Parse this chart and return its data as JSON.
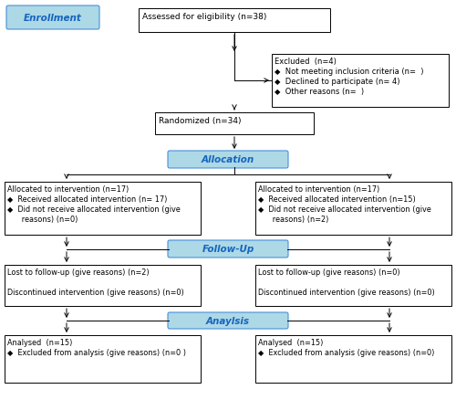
{
  "bg_color": "#ffffff",
  "blue_fill": "#ADD8E6",
  "blue_edge": "#4A90D9",
  "blue_text": "#1565C0",
  "box_edge": "#000000",
  "enrollment_label": "Enrollment",
  "allocation_label": "Allocation",
  "followup_label": "Follow-Up",
  "analysis_label": "Anaylsis",
  "assessed_text": "Assessed for eligibility (n=38)",
  "excluded_text": "Excluded  (n=4)\n◆  Not meeting inclusion criteria (n=  )\n◆  Declined to participate (n= 4)\n◆  Other reasons (n=  )",
  "randomized_text": "Randomized (n=34)",
  "alloc_left_text": "Allocated to intervention (n=17)\n◆  Received allocated intervention (n= 17)\n◆  Did not receive allocated intervention (give\n      reasons) (n=0)",
  "alloc_right_text": "Allocated to intervention (n=17)\n◆  Received allocated intervention (n=15)\n◆  Did not receive allocated intervention (give\n      reasons) (n=2)",
  "followup_left_text": "Lost to follow-up (give reasons) (n=2)\n\nDiscontinued intervention (give reasons) (n=0)",
  "followup_right_text": "Lost to follow-up (give reasons) (n=0)\n\nDiscontinued intervention (give reasons) (n=0)",
  "analysis_left_text": "Analysed  (n=15)\n◆  Excluded from analysis (give reasons) (n=0 )",
  "analysis_right_text": "Analysed  (n=15)\n◆  Excluded from analysis (give reasons) (n=0)"
}
